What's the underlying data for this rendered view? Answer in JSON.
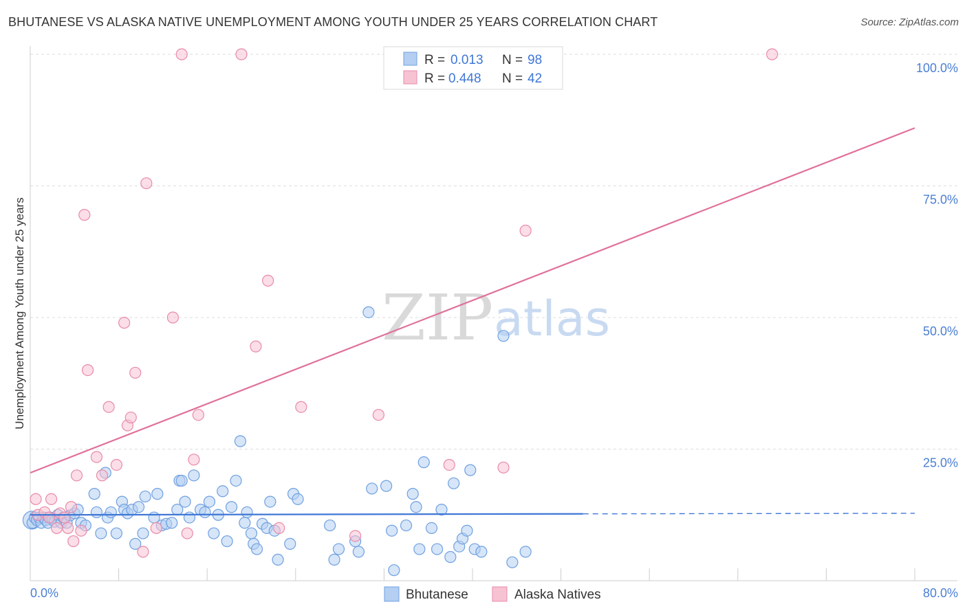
{
  "title": "BHUTANESE VS ALASKA NATIVE UNEMPLOYMENT AMONG YOUTH UNDER 25 YEARS CORRELATION CHART",
  "source": "Source: ZipAtlas.com",
  "watermark": {
    "zip": "ZIP",
    "atlas": "atlas"
  },
  "chart_data": {
    "type": "scatter",
    "ylabel": "Unemployment Among Youth under 25 years",
    "xlim": [
      0,
      80
    ],
    "ylim": [
      0,
      100
    ],
    "x_ticks": [
      "0.0%",
      "80.0%"
    ],
    "y_ticks": [
      {
        "value": 25,
        "label": "25.0%"
      },
      {
        "value": 50,
        "label": "50.0%"
      },
      {
        "value": 75,
        "label": "75.0%"
      },
      {
        "value": 100,
        "label": "100.0%"
      }
    ],
    "grid": true,
    "legend_position": "top-center",
    "stats": [
      {
        "r_label": "R =",
        "r": "0.013",
        "n_label": "N =",
        "n": "98"
      },
      {
        "r_label": "R =",
        "r": "0.448",
        "n_label": "N =",
        "n": "42"
      }
    ],
    "series": [
      {
        "name": "Bhutanese",
        "color": "#6fa0e0",
        "fill": "#b4cff2",
        "trend": {
          "x0": 0,
          "y0": 12.5,
          "x1": 50,
          "y1": 12.7,
          "dashed_to": 80,
          "dashed_y": 12.8
        },
        "points": [
          [
            0.2,
            11
          ],
          [
            0.4,
            12
          ],
          [
            0.6,
            11.5
          ],
          [
            0.8,
            12
          ],
          [
            1,
            11
          ],
          [
            1.2,
            12
          ],
          [
            1.4,
            11.5
          ],
          [
            1.6,
            11
          ],
          [
            1.8,
            12
          ],
          [
            2,
            11.8
          ],
          [
            2.2,
            11.2
          ],
          [
            2.5,
            12.5
          ],
          [
            2.8,
            11
          ],
          [
            3,
            12
          ],
          [
            3.3,
            11
          ],
          [
            3.6,
            12.4
          ],
          [
            4,
            12.8
          ],
          [
            4.3,
            13.5
          ],
          [
            4.6,
            11
          ],
          [
            5,
            10.5
          ],
          [
            5.8,
            16.5
          ],
          [
            6,
            13
          ],
          [
            6.4,
            9
          ],
          [
            6.8,
            20.5
          ],
          [
            7,
            12
          ],
          [
            7.3,
            13
          ],
          [
            7.8,
            9
          ],
          [
            8.3,
            15
          ],
          [
            8.5,
            13.5
          ],
          [
            8.8,
            12.8
          ],
          [
            9.2,
            13.5
          ],
          [
            9.5,
            7
          ],
          [
            9.8,
            14
          ],
          [
            10.2,
            9
          ],
          [
            10.4,
            16
          ],
          [
            11.2,
            12
          ],
          [
            11.5,
            16.5
          ],
          [
            11.9,
            10.5
          ],
          [
            12.3,
            10.8
          ],
          [
            12.8,
            11
          ],
          [
            13.3,
            13.5
          ],
          [
            13.5,
            19
          ],
          [
            13.7,
            19
          ],
          [
            14,
            15
          ],
          [
            14.4,
            12
          ],
          [
            14.8,
            20
          ],
          [
            15.4,
            13.5
          ],
          [
            15.8,
            13
          ],
          [
            16.2,
            15
          ],
          [
            16.6,
            9
          ],
          [
            17,
            12.5
          ],
          [
            17.4,
            17
          ],
          [
            17.8,
            7.5
          ],
          [
            18.2,
            14
          ],
          [
            18.6,
            19
          ],
          [
            19,
            26.5
          ],
          [
            19.4,
            11
          ],
          [
            19.6,
            13
          ],
          [
            20,
            9
          ],
          [
            20.2,
            7
          ],
          [
            20.5,
            6
          ],
          [
            21,
            10.8
          ],
          [
            21.4,
            10
          ],
          [
            21.7,
            15
          ],
          [
            22.1,
            9.5
          ],
          [
            22.4,
            4
          ],
          [
            23.5,
            7
          ],
          [
            23.8,
            16.5
          ],
          [
            24.2,
            15.5
          ],
          [
            27.1,
            10.5
          ],
          [
            27.5,
            4
          ],
          [
            27.9,
            6
          ],
          [
            29.4,
            7.5
          ],
          [
            29.7,
            5.5
          ],
          [
            30.6,
            51
          ],
          [
            30.9,
            17.5
          ],
          [
            32.2,
            18
          ],
          [
            32.7,
            9.5
          ],
          [
            32.9,
            2
          ],
          [
            34,
            10.5
          ],
          [
            34.6,
            16.5
          ],
          [
            34.9,
            14
          ],
          [
            35.2,
            6
          ],
          [
            35.6,
            22.5
          ],
          [
            36.3,
            10
          ],
          [
            36.8,
            6
          ],
          [
            37.2,
            13.5
          ],
          [
            38,
            4.5
          ],
          [
            38.3,
            18.5
          ],
          [
            38.8,
            6.5
          ],
          [
            39.1,
            8
          ],
          [
            39.5,
            9.5
          ],
          [
            39.8,
            21
          ],
          [
            40.2,
            6
          ],
          [
            40.8,
            5.5
          ],
          [
            42.8,
            46.5
          ],
          [
            43.6,
            3.5
          ],
          [
            44.8,
            5.5
          ]
        ]
      },
      {
        "name": "Alaska Natives",
        "color": "#e88aa8",
        "fill": "#f7c3d3",
        "trend": {
          "x0": 0,
          "y0": 20.5,
          "x1": 80,
          "y1": 86
        },
        "points": [
          [
            0.5,
            15.5
          ],
          [
            0.7,
            12.5
          ],
          [
            1.3,
            13
          ],
          [
            1.7,
            12
          ],
          [
            1.9,
            15.5
          ],
          [
            2.4,
            10
          ],
          [
            2.7,
            12.8
          ],
          [
            3.1,
            12
          ],
          [
            3.4,
            10
          ],
          [
            3.7,
            14
          ],
          [
            3.9,
            7.5
          ],
          [
            4.2,
            20
          ],
          [
            4.6,
            9.5
          ],
          [
            4.9,
            69.5
          ],
          [
            5.2,
            40
          ],
          [
            6,
            23.5
          ],
          [
            6.5,
            20
          ],
          [
            7.1,
            33
          ],
          [
            7.8,
            22
          ],
          [
            8.5,
            49
          ],
          [
            8.8,
            29.5
          ],
          [
            9.1,
            31
          ],
          [
            9.5,
            39.5
          ],
          [
            10.2,
            5.5
          ],
          [
            10.5,
            75.5
          ],
          [
            11.4,
            10
          ],
          [
            12.9,
            50
          ],
          [
            13.7,
            100
          ],
          [
            14.2,
            9
          ],
          [
            14.8,
            23
          ],
          [
            15.2,
            31.5
          ],
          [
            19.1,
            100
          ],
          [
            20.4,
            44.5
          ],
          [
            21.5,
            57
          ],
          [
            22.5,
            10
          ],
          [
            24.5,
            33
          ],
          [
            29.4,
            8.5
          ],
          [
            31.5,
            31.5
          ],
          [
            37.9,
            22
          ],
          [
            42.8,
            21.5
          ],
          [
            44.8,
            66.5
          ],
          [
            67.1,
            100
          ]
        ]
      }
    ]
  }
}
